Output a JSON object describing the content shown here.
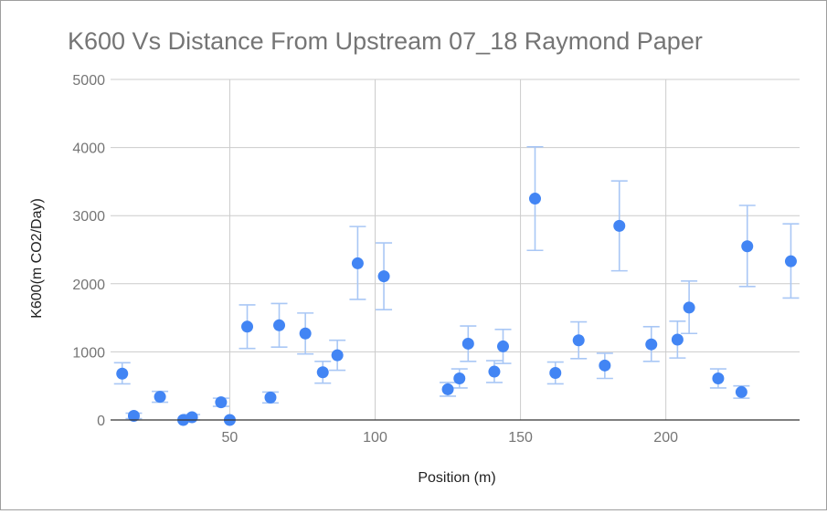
{
  "chart_data": {
    "type": "scatter",
    "title": "K600 Vs Distance From Upstream 07_18 Raymond Paper",
    "xlabel": "Position (m)",
    "ylabel": "K600(m CO2/Day)",
    "xlim": [
      9,
      246
    ],
    "ylim": [
      0,
      5000
    ],
    "x_ticks": [
      50,
      100,
      150,
      200
    ],
    "y_ticks": [
      0,
      1000,
      2000,
      3000,
      4000,
      5000
    ],
    "grid": true,
    "legend": "none",
    "colors": {
      "point": "#4285f4",
      "error_bar": "#a9c7f5"
    },
    "series": [
      {
        "points": [
          {
            "x": 13,
            "y": 680,
            "lo": 530,
            "hi": 840
          },
          {
            "x": 17,
            "y": 60,
            "lo": 20,
            "hi": 100
          },
          {
            "x": 26,
            "y": 340,
            "lo": 260,
            "hi": 420
          },
          {
            "x": 34,
            "y": 0,
            "lo": 0,
            "hi": 0
          },
          {
            "x": 37,
            "y": 40,
            "lo": 0,
            "hi": 80
          },
          {
            "x": 47,
            "y": 260,
            "lo": 200,
            "hi": 320
          },
          {
            "x": 50,
            "y": 0,
            "lo": 0,
            "hi": 0
          },
          {
            "x": 56,
            "y": 1370,
            "lo": 1050,
            "hi": 1690
          },
          {
            "x": 64,
            "y": 330,
            "lo": 250,
            "hi": 410
          },
          {
            "x": 67,
            "y": 1390,
            "lo": 1070,
            "hi": 1710
          },
          {
            "x": 76,
            "y": 1270,
            "lo": 970,
            "hi": 1570
          },
          {
            "x": 82,
            "y": 700,
            "lo": 540,
            "hi": 860
          },
          {
            "x": 87,
            "y": 950,
            "lo": 730,
            "hi": 1170
          },
          {
            "x": 94,
            "y": 2300,
            "lo": 1770,
            "hi": 2840
          },
          {
            "x": 103,
            "y": 2110,
            "lo": 1620,
            "hi": 2600
          },
          {
            "x": 125,
            "y": 450,
            "lo": 350,
            "hi": 550
          },
          {
            "x": 129,
            "y": 610,
            "lo": 470,
            "hi": 750
          },
          {
            "x": 132,
            "y": 1120,
            "lo": 860,
            "hi": 1380
          },
          {
            "x": 141,
            "y": 710,
            "lo": 550,
            "hi": 870
          },
          {
            "x": 144,
            "y": 1080,
            "lo": 830,
            "hi": 1330
          },
          {
            "x": 155,
            "y": 3250,
            "lo": 2490,
            "hi": 4010
          },
          {
            "x": 162,
            "y": 690,
            "lo": 530,
            "hi": 850
          },
          {
            "x": 170,
            "y": 1170,
            "lo": 900,
            "hi": 1440
          },
          {
            "x": 179,
            "y": 800,
            "lo": 610,
            "hi": 980
          },
          {
            "x": 184,
            "y": 2850,
            "lo": 2190,
            "hi": 3510
          },
          {
            "x": 195,
            "y": 1110,
            "lo": 860,
            "hi": 1370
          },
          {
            "x": 204,
            "y": 1180,
            "lo": 910,
            "hi": 1450
          },
          {
            "x": 208,
            "y": 1650,
            "lo": 1270,
            "hi": 2040
          },
          {
            "x": 218,
            "y": 610,
            "lo": 470,
            "hi": 750
          },
          {
            "x": 226,
            "y": 410,
            "lo": 320,
            "hi": 500
          },
          {
            "x": 228,
            "y": 2550,
            "lo": 1960,
            "hi": 3150
          },
          {
            "x": 243,
            "y": 2330,
            "lo": 1790,
            "hi": 2880
          }
        ]
      }
    ]
  }
}
